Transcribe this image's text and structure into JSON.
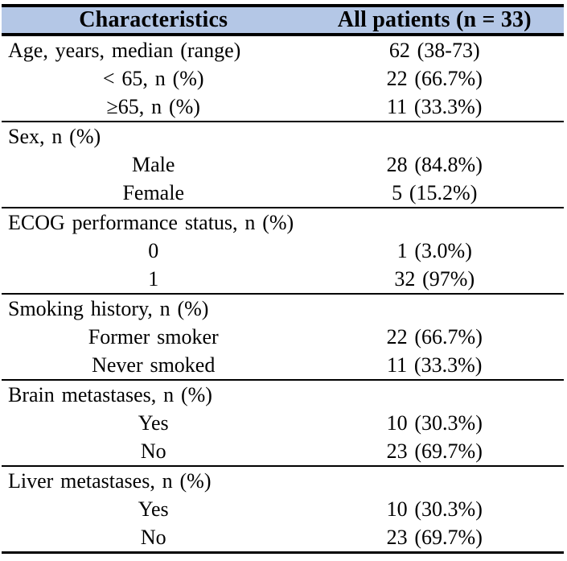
{
  "title": "Patient characteristics table",
  "theme": {
    "header_bg": "#b4c7e6",
    "border_color": "#000000",
    "text_color": "#000000",
    "background": "#ffffff"
  },
  "header": {
    "characteristics": "Characteristics",
    "all_patients": "All patients (n = 33)"
  },
  "sections": [
    {
      "name": "age",
      "rows": [
        {
          "label": "Age, years, median (range)",
          "value": "62 (38-73)"
        },
        {
          "label": "< 65, n (%)",
          "value": "22 (66.7%)"
        },
        {
          "label": "≥65, n (%)",
          "value": "11 (33.3%)"
        }
      ]
    },
    {
      "name": "sex",
      "rows": [
        {
          "label": "Sex, n (%)",
          "value": ""
        },
        {
          "label": "Male",
          "value": "28 (84.8%)"
        },
        {
          "label": "Female",
          "value": "5 (15.2%)"
        }
      ]
    },
    {
      "name": "ecog",
      "rows": [
        {
          "label": "ECOG performance status, n (%)",
          "value": ""
        },
        {
          "label": "0",
          "value": "1 (3.0%)"
        },
        {
          "label": "1",
          "value": "32 (97%)"
        }
      ]
    },
    {
      "name": "smoking",
      "rows": [
        {
          "label": "Smoking history, n (%)",
          "value": ""
        },
        {
          "label": "Former smoker",
          "value": "22 (66.7%)"
        },
        {
          "label": "Never smoked",
          "value": "11 (33.3%)"
        }
      ]
    },
    {
      "name": "brain-metastases",
      "rows": [
        {
          "label": "Brain metastases, n (%)",
          "value": ""
        },
        {
          "label": "Yes",
          "value": "10 (30.3%)"
        },
        {
          "label": "No",
          "value": "23 (69.7%)"
        }
      ]
    },
    {
      "name": "liver-metastases",
      "rows": [
        {
          "label": "Liver metastases, n (%)",
          "value": ""
        },
        {
          "label": "Yes",
          "value": "10 (30.3%)"
        },
        {
          "label": "No",
          "value": "23 (69.7%)"
        }
      ]
    }
  ]
}
